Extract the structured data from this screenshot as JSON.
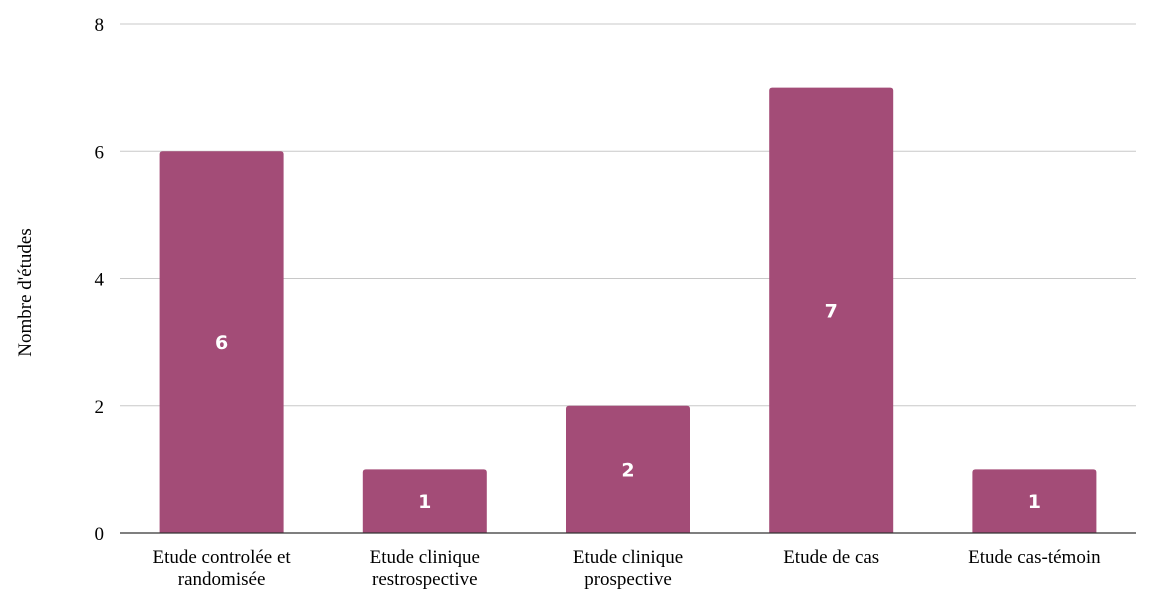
{
  "chart_data": {
    "type": "bar",
    "categories": [
      [
        "Etude controlée et",
        "randomisée"
      ],
      [
        "Etude clinique",
        "restrospective"
      ],
      [
        "Etude clinique",
        "prospective"
      ],
      [
        "Etude de cas"
      ],
      [
        "Etude cas-témoin"
      ]
    ],
    "values": [
      6,
      1,
      2,
      7,
      1
    ],
    "title": "",
    "xlabel": "",
    "ylabel": "Nombre d'études",
    "ylim": [
      0,
      8
    ],
    "yticks": [
      0,
      2,
      4,
      6,
      8
    ],
    "grid": true,
    "legend": "none",
    "bar_color": "#a34c77",
    "data_label_color": "#ffffff"
  }
}
